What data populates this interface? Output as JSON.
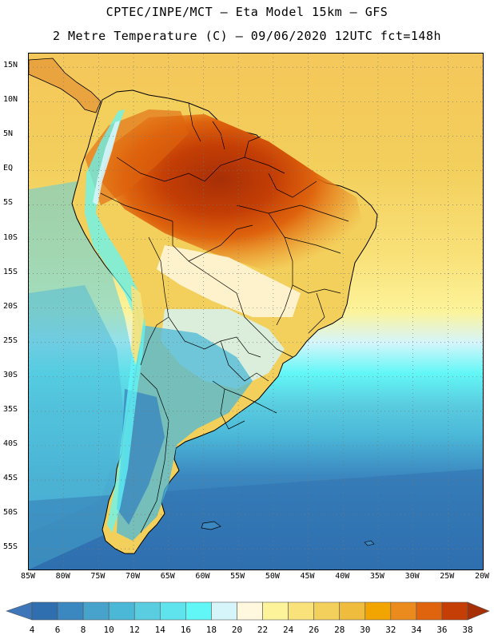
{
  "header": {
    "title_line1": "CPTEC/INPE/MCT –  Eta Model 15km – GFS",
    "title_line2": "2 Metre Temperature (C) – 09/06/2020 12UTC fct=148h"
  },
  "map": {
    "region": "South America",
    "lon_range": [
      -85,
      -20
    ],
    "lat_range": [
      -58,
      17
    ],
    "lat_labels": [
      {
        "text": "15N",
        "lat": 15
      },
      {
        "text": "10N",
        "lat": 10
      },
      {
        "text": "5N",
        "lat": 5
      },
      {
        "text": "EQ",
        "lat": 0
      },
      {
        "text": "5S",
        "lat": -5
      },
      {
        "text": "10S",
        "lat": -10
      },
      {
        "text": "15S",
        "lat": -15
      },
      {
        "text": "20S",
        "lat": -20
      },
      {
        "text": "25S",
        "lat": -25
      },
      {
        "text": "30S",
        "lat": -30
      },
      {
        "text": "35S",
        "lat": -35
      },
      {
        "text": "40S",
        "lat": -40
      },
      {
        "text": "45S",
        "lat": -45
      },
      {
        "text": "50S",
        "lat": -50
      },
      {
        "text": "55S",
        "lat": -55
      }
    ],
    "lon_labels": [
      {
        "text": "85W",
        "lon": -85
      },
      {
        "text": "80W",
        "lon": -80
      },
      {
        "text": "75W",
        "lon": -75
      },
      {
        "text": "70W",
        "lon": -70
      },
      {
        "text": "65W",
        "lon": -65
      },
      {
        "text": "60W",
        "lon": -60
      },
      {
        "text": "55W",
        "lon": -55
      },
      {
        "text": "50W",
        "lon": -50
      },
      {
        "text": "45W",
        "lon": -45
      },
      {
        "text": "40W",
        "lon": -40
      },
      {
        "text": "35W",
        "lon": -35
      },
      {
        "text": "30W",
        "lon": -30
      },
      {
        "text": "25W",
        "lon": -25
      },
      {
        "text": "20W",
        "lon": -20
      }
    ]
  },
  "colorbar": {
    "unit": "C",
    "labels": [
      "4",
      "6",
      "8",
      "10",
      "12",
      "14",
      "16",
      "18",
      "20",
      "22",
      "24",
      "26",
      "28",
      "30",
      "32",
      "34",
      "36",
      "38"
    ],
    "colors": [
      "#3d76b9",
      "#2f6faf",
      "#3b87c0",
      "#48a3cc",
      "#4bb8d8",
      "#5acde0",
      "#5fe3ec",
      "#62f7f7",
      "#d5f5fb",
      "#fff8df",
      "#fdf39a",
      "#f9e27a",
      "#f3cf5c",
      "#efbc3e",
      "#f2a400",
      "#eb8a1d",
      "#df640d",
      "#c43e05",
      "#a72f06"
    ]
  }
}
